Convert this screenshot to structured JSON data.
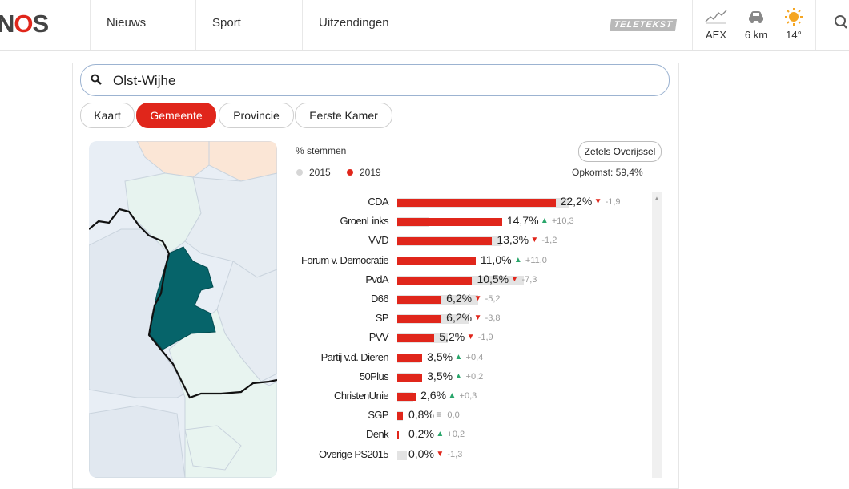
{
  "header": {
    "logo_n": "N",
    "logo_o": "O",
    "logo_s": "S",
    "nav": [
      "Nieuws",
      "Sport",
      "Uitzendingen"
    ],
    "teletekst": "TELETEKST",
    "aex": "AEX",
    "traffic": "6 km",
    "temperature": "14°"
  },
  "search": {
    "value": "Olst-Wijhe"
  },
  "tabs": [
    {
      "label": "Kaart",
      "active": false
    },
    {
      "label": "Gemeente",
      "active": true
    },
    {
      "label": "Provincie",
      "active": false
    },
    {
      "label": "Eerste Kamer",
      "active": false
    }
  ],
  "results": {
    "metric_label": "% stemmen",
    "legend": [
      {
        "label": "2015",
        "color": "#d6d6d6"
      },
      {
        "label": "2019",
        "color": "#e0261b"
      }
    ],
    "zetels_button": "Zetels Overijssel",
    "turnout": "Opkomst: 59,4%"
  },
  "chart_data": {
    "type": "bar",
    "categories": [
      "CDA",
      "GroenLinks",
      "VVD",
      "Forum v. Democratie",
      "PvdA",
      "D66",
      "SP",
      "PVV",
      "Partij v.d. Dieren",
      "50Plus",
      "ChristenUnie",
      "SGP",
      "Denk",
      "Overige PS2015"
    ],
    "series": [
      {
        "name": "2019",
        "values": [
          22.2,
          14.7,
          13.3,
          11.0,
          10.5,
          6.2,
          6.2,
          5.2,
          3.5,
          3.5,
          2.6,
          0.8,
          0.2,
          0.0
        ]
      },
      {
        "name": "2015",
        "values": [
          24.1,
          4.4,
          14.5,
          0.0,
          17.8,
          11.4,
          10.0,
          7.1,
          3.1,
          3.3,
          2.3,
          0.8,
          0.0,
          1.3
        ]
      }
    ],
    "labels": [
      "22,2%",
      "14,7%",
      "13,3%",
      "11,0%",
      "10,5%",
      "6,2%",
      "6,2%",
      "5,2%",
      "3,5%",
      "3,5%",
      "2,6%",
      "0,8%",
      "0,2%",
      "0,0%"
    ],
    "changes": [
      "-1,9",
      "+10,3",
      "-1,2",
      "+11,0",
      "-7,3",
      "-5,2",
      "-3,8",
      "-1,9",
      "+0,4",
      "+0,2",
      "+0,3",
      "0,0",
      "+0,2",
      "-1,3"
    ],
    "directions": [
      "down",
      "up",
      "down",
      "up",
      "down",
      "down",
      "down",
      "down",
      "up",
      "up",
      "up",
      "eq",
      "up",
      "down"
    ],
    "xlim": [
      0,
      25
    ]
  }
}
